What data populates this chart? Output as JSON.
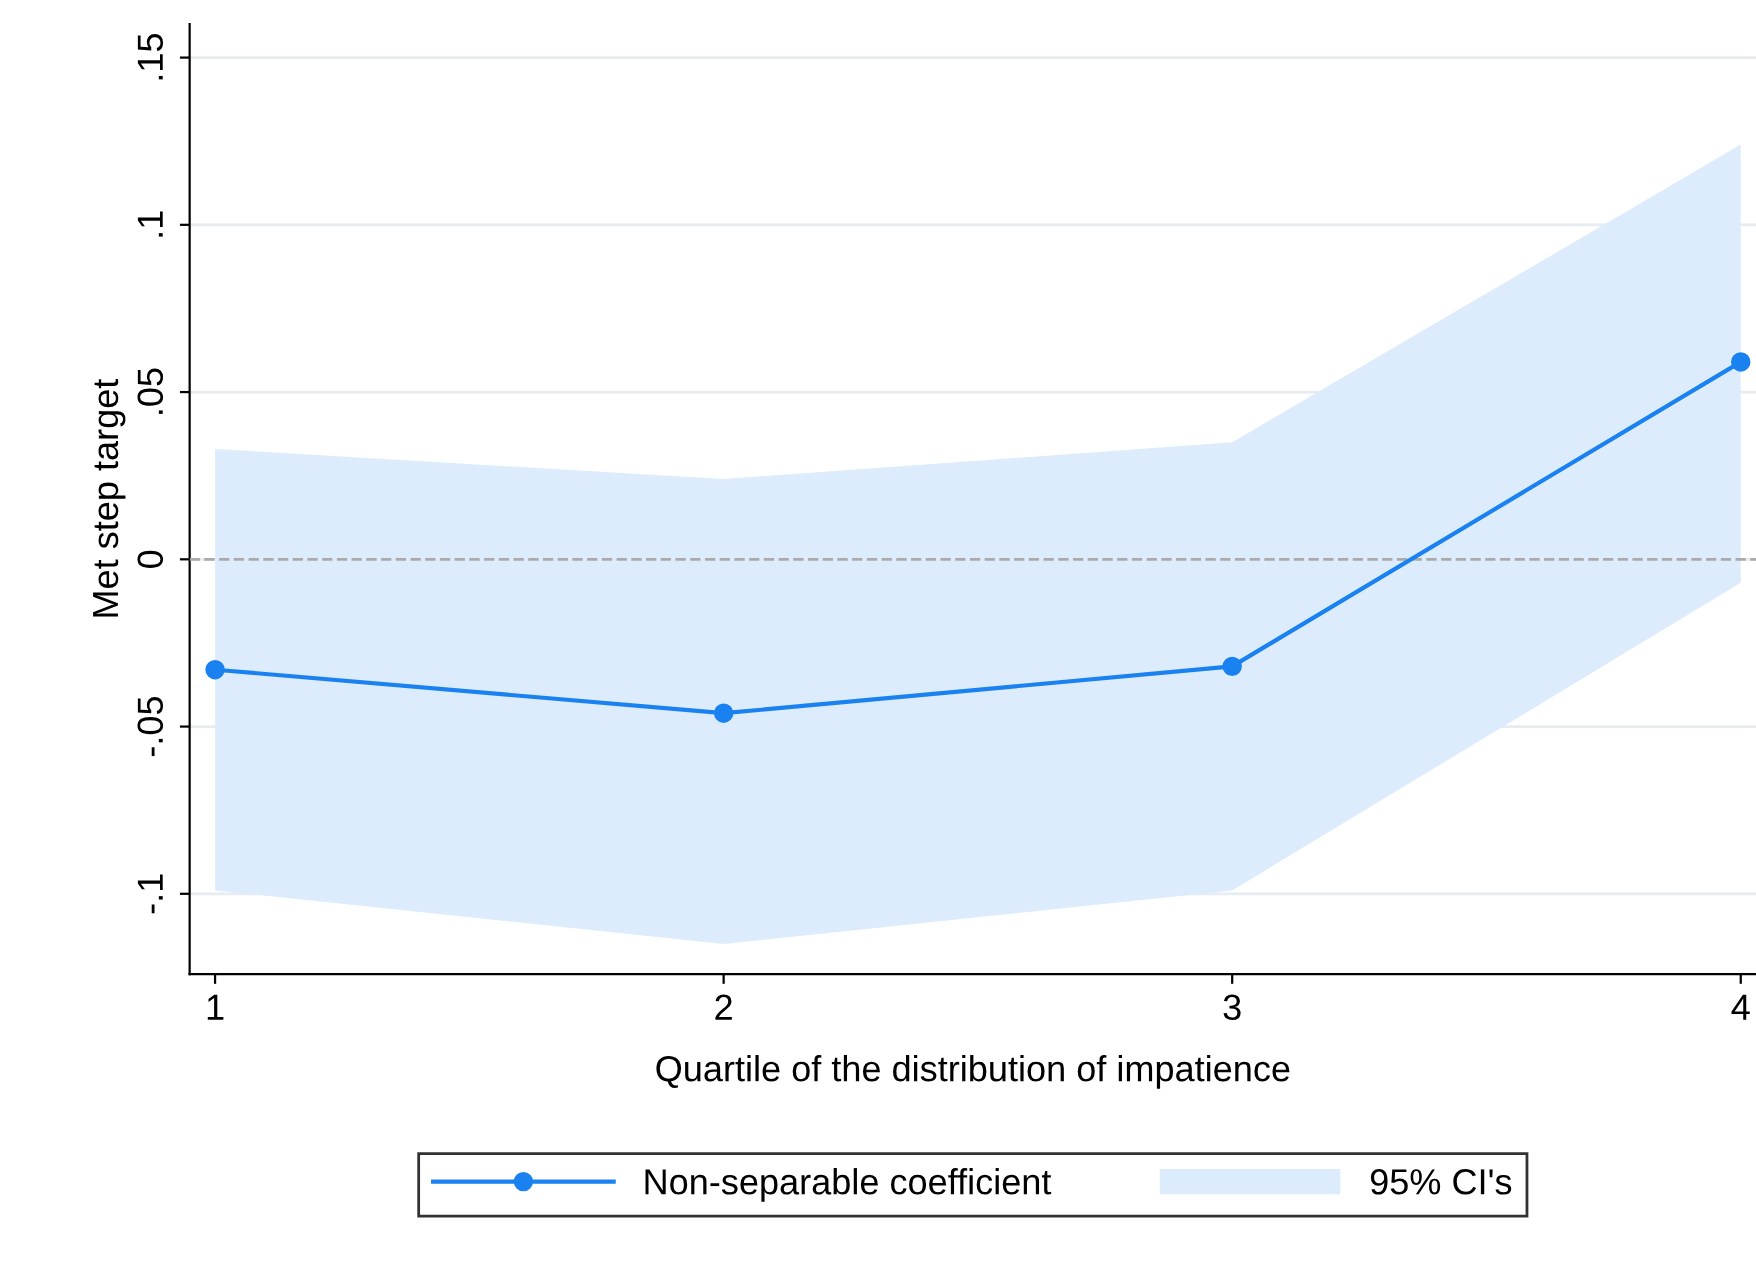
{
  "chart_data": {
    "type": "line",
    "xlabel": "Quartile of the distribution of impatience",
    "ylabel": "Met step target",
    "x": [
      1,
      2,
      3,
      4
    ],
    "series": [
      {
        "name": "Non-separable coefficient",
        "color": "#1a82f0",
        "values": [
          -0.033,
          -0.046,
          -0.032,
          0.059
        ],
        "lower": [
          -0.099,
          -0.115,
          -0.099,
          -0.007
        ],
        "upper": [
          0.033,
          0.024,
          0.035,
          0.124
        ]
      }
    ],
    "annotations": [
      "95% CI's"
    ],
    "xlim": [
      0.95,
      4.03
    ],
    "ylim": [
      -0.124,
      0.16
    ],
    "xticks": [
      1,
      2,
      3,
      4
    ],
    "yticks": [
      {
        "value": -0.1,
        "label": "-.1"
      },
      {
        "value": -0.05,
        "label": "-.05"
      },
      {
        "value": 0,
        "label": "0"
      },
      {
        "value": 0.05,
        "label": ".05"
      },
      {
        "value": 0.1,
        "label": ".1"
      },
      {
        "value": 0.15,
        "label": ".15"
      }
    ],
    "ref_lines": [
      {
        "axis": "y",
        "value": 0,
        "color": "#aaaaaa",
        "line_style": "dashed"
      }
    ],
    "grid": "y",
    "legend": "bottom",
    "line_style": "solid",
    "marker": "circle"
  }
}
